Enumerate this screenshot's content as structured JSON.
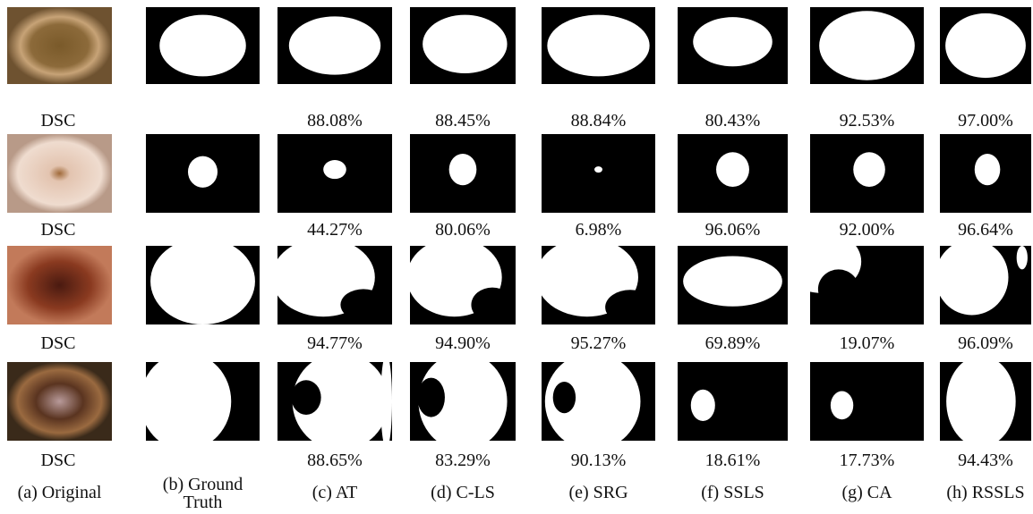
{
  "columns": [
    "(a) Original",
    "(b) Ground Truth",
    "(c) AT",
    "(d) C-LS",
    "(e) SRG",
    "(f) SSLS",
    "(g) CA",
    "(h) RSSLS"
  ],
  "rows": [
    {
      "label": "DSC",
      "dsc": [
        "88.08%",
        "88.45%",
        "88.84%",
        "80.43%",
        "92.53%",
        "97.00%"
      ]
    },
    {
      "label": "DSC",
      "dsc": [
        "44.27%",
        "80.06%",
        "6.98%",
        "96.06%",
        "92.00%",
        "96.64%"
      ]
    },
    {
      "label": "DSC",
      "dsc": [
        "94.77%",
        "94.90%",
        "95.27%",
        "69.89%",
        "19.07%",
        "96.09%"
      ]
    },
    {
      "label": "DSC",
      "dsc": [
        "88.65%",
        "83.29%",
        "90.13%",
        "18.61%",
        "17.73%",
        "94.43%"
      ]
    }
  ]
}
